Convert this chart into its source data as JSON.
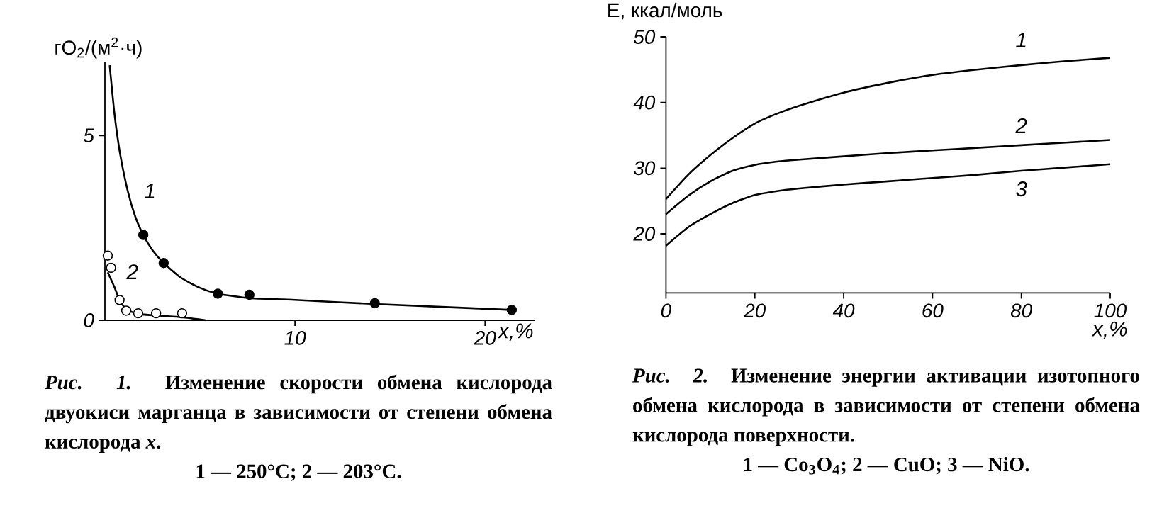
{
  "chart_data": [
    {
      "type": "line",
      "xlabel": "x,%",
      "ylabel": "гO$_{2}$/(м$^{2}$·ч)",
      "xlim": [
        0,
        22.6
      ],
      "ylim": [
        0,
        7
      ],
      "xticks": [
        10,
        20
      ],
      "yticks": [
        0,
        5
      ],
      "series": [
        {
          "name": "1",
          "type": "line",
          "color": "#000000",
          "x": [
            0.25,
            0.5,
            0.8,
            1.2,
            1.6,
            2.02,
            2.5,
            3.09,
            4,
            5,
            5.94,
            7.6,
            10,
            14.2,
            21.4
          ],
          "values": [
            6.9,
            5.6,
            4.5,
            3.5,
            2.8,
            2.31,
            1.9,
            1.55,
            1.15,
            0.88,
            0.72,
            0.6,
            0.55,
            0.44,
            0.28
          ]
        },
        {
          "name": "2",
          "type": "line",
          "color": "#000000",
          "x": [
            0.15,
            0.5,
            0.77,
            1.12,
            1.75,
            3,
            4.06,
            5.3
          ],
          "values": [
            1.3,
            0.9,
            0.55,
            0.3,
            0.17,
            0.12,
            0.08,
            0
          ]
        },
        {
          "type": "scatter",
          "marker": "circle",
          "color": "#000000",
          "x": [
            2.02,
            3.09,
            5.94,
            7.6,
            14.2,
            21.4
          ],
          "values": [
            2.31,
            1.55,
            0.72,
            0.69,
            0.46,
            0.28
          ]
        },
        {
          "type": "scatter",
          "marker": "circle",
          "color": "#000000",
          "x": [
            0.15,
            0.32,
            0.77,
            1.12,
            1.75,
            2.69,
            4.06
          ],
          "values": [
            1.75,
            1.42,
            0.55,
            0.26,
            0.19,
            0.19,
            0.19
          ]
        }
      ],
      "annotations": [
        "*Рис. 1.* Изменение скорости обмена кислорода двуокиси марганца в зависимости от степени обмена кислорода *x*.",
        "1 — 250°C; 2 — 203°C."
      ]
    },
    {
      "type": "line",
      "xlabel": "x,%",
      "ylabel": "E, ккал/моль",
      "xlim": [
        0,
        100
      ],
      "ylim": [
        11,
        50
      ],
      "xticks": [
        0,
        20,
        40,
        60,
        80,
        100
      ],
      "yticks": [
        20,
        30,
        40,
        50
      ],
      "series": [
        {
          "name": "1",
          "color": "#000000",
          "x": [
            0,
            5,
            10,
            15,
            20,
            25,
            30,
            40,
            50,
            60,
            70,
            80,
            90,
            100
          ],
          "values": [
            25.3,
            29.0,
            32.0,
            34.6,
            36.8,
            38.3,
            39.5,
            41.5,
            43.0,
            44.2,
            45.0,
            45.7,
            46.3,
            46.8
          ]
        },
        {
          "name": "2",
          "color": "#000000",
          "x": [
            0,
            5,
            10,
            15,
            20,
            25,
            30,
            40,
            50,
            60,
            70,
            80,
            90,
            100
          ],
          "values": [
            23.0,
            25.8,
            28.0,
            29.6,
            30.5,
            31.0,
            31.3,
            31.8,
            32.3,
            32.7,
            33.1,
            33.5,
            33.9,
            34.3
          ]
        },
        {
          "name": "3",
          "color": "#000000",
          "x": [
            0,
            5,
            10,
            15,
            20,
            25,
            30,
            40,
            50,
            60,
            70,
            80,
            90,
            100
          ],
          "values": [
            18.2,
            21.0,
            23.0,
            24.7,
            25.9,
            26.5,
            26.9,
            27.5,
            28.0,
            28.5,
            29.0,
            29.6,
            30.1,
            30.6
          ]
        }
      ],
      "annotations": [
        "*Рис. 2.* Изменение энергии активации изотопного обмена кислорода в зависимости от степени обмена кислорода поверхности.",
        "1 — Co$_{3}$O$_{4}$; 2 — CuO; 3 — NiO."
      ]
    }
  ]
}
